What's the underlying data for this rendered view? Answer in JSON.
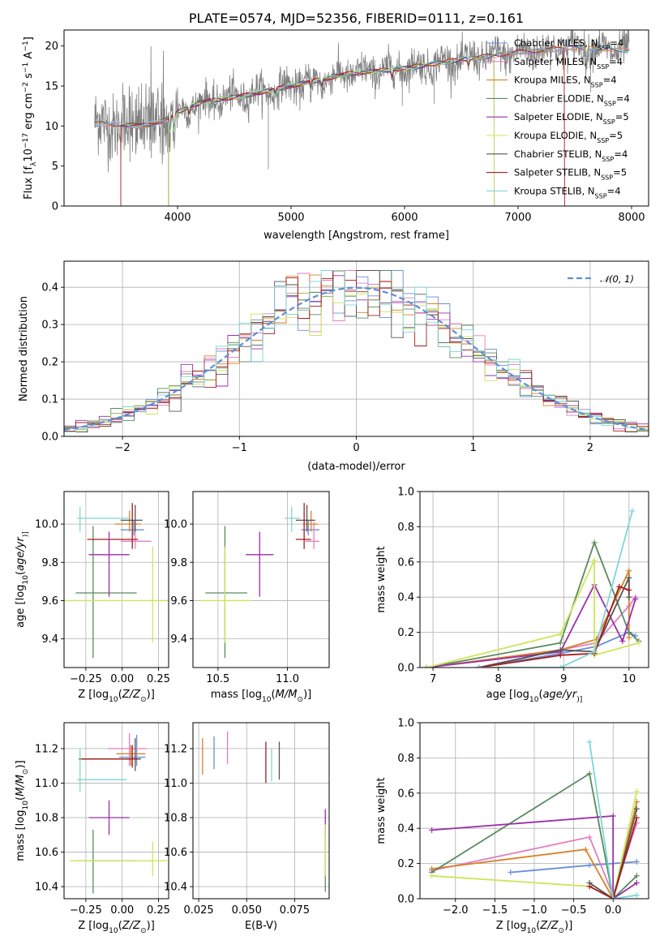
{
  "colors": {
    "Chabrier MILES": "#6a8fd8",
    "Salpeter MILES": "#e27fc0",
    "Kroupa MILES": "#d9802a",
    "Chabrier ELODIE": "#5b8a5e",
    "Salpeter ELODIE": "#9b2ea8",
    "Kroupa ELODIE": "#cde65a",
    "Chabrier STELIB": "#555555",
    "Salpeter STELIB": "#a51c1c",
    "Kroupa STELIB": "#7fd6d6"
  },
  "legend_models": [
    {
      "key": "Chabrier MILES",
      "pre": "Chabrier MILES, N",
      "sub": "SSP",
      "post": "=4"
    },
    {
      "key": "Salpeter MILES",
      "pre": "Salpeter MILES, N",
      "sub": "SSP",
      "post": "=4"
    },
    {
      "key": "Kroupa MILES",
      "pre": "Kroupa MILES, N",
      "sub": "SSP",
      "post": "=4"
    },
    {
      "key": "Chabrier ELODIE",
      "pre": "Chabrier ELODIE, N",
      "sub": "SSP",
      "post": "=4"
    },
    {
      "key": "Salpeter ELODIE",
      "pre": "Salpeter ELODIE, N",
      "sub": "SSP",
      "post": "=5"
    },
    {
      "key": "Kroupa ELODIE",
      "pre": "Kroupa ELODIE, N",
      "sub": "SSP",
      "post": "=5"
    },
    {
      "key": "Chabrier STELIB",
      "pre": "Chabrier STELIB, N",
      "sub": "SSP",
      "post": "=4"
    },
    {
      "key": "Salpeter STELIB",
      "pre": "Salpeter STELIB, N",
      "sub": "SSP",
      "post": "=5"
    },
    {
      "key": "Kroupa STELIB",
      "pre": "Kroupa STELIB, N",
      "sub": "SSP",
      "post": "=4"
    }
  ],
  "chart_data": [
    {
      "id": "spectrum",
      "type": "line",
      "title": "PLATE=0574, MJD=52356, FIBERID=0111, z=0.161",
      "xlabel": "wavelength [Angstrom, rest frame]",
      "ylabel_parts": [
        "Flux [f",
        "λ",
        "10",
        "−17",
        " erg cm",
        "−2",
        " s",
        "−1",
        " A",
        "−1",
        "]"
      ],
      "xlim": [
        3000,
        8150
      ],
      "ylim": [
        0,
        22
      ],
      "xticks": [
        4000,
        5000,
        6000,
        7000,
        8000
      ],
      "yticks": [
        0,
        5,
        10,
        15,
        20
      ],
      "grid": false,
      "legend": "right",
      "data_range_angstrom": [
        3270,
        7980
      ],
      "continuum_anchors": [
        [
          3270,
          10.3
        ],
        [
          3500,
          10.2
        ],
        [
          3700,
          10.0
        ],
        [
          3900,
          10.8
        ],
        [
          4100,
          12.5
        ],
        [
          4300,
          13.2
        ],
        [
          4600,
          13.8
        ],
        [
          5000,
          15.0
        ],
        [
          5500,
          16.5
        ],
        [
          6000,
          17.2
        ],
        [
          6500,
          18.3
        ],
        [
          7000,
          19.2
        ],
        [
          7500,
          19.8
        ],
        [
          7980,
          19.5
        ]
      ],
      "absorption_features": [
        [
          3934,
          9.0
        ],
        [
          3969,
          9.2
        ],
        [
          4102,
          11.5
        ],
        [
          4304,
          12.3
        ],
        [
          4861,
          13.8
        ],
        [
          5175,
          14.4
        ],
        [
          5270,
          15.0
        ],
        [
          5890,
          16.1
        ],
        [
          6563,
          17.6
        ],
        [
          7605,
          18.7
        ]
      ]
    },
    {
      "id": "residuals",
      "type": "histogram",
      "xlabel": "(data-model)/error",
      "ylabel": "Normed distribution",
      "xlim": [
        -2.5,
        2.5
      ],
      "ylim": [
        0,
        0.47
      ],
      "xticks": [
        -2,
        -1,
        0,
        1,
        2
      ],
      "yticks": [
        0.0,
        0.1,
        0.2,
        0.3,
        0.4
      ],
      "grid": true,
      "legend": "upper right",
      "reference_label": "𝒩(0, 1)",
      "bin_width": 0.1
    },
    {
      "id": "age_vs_Z",
      "type": "errorbar",
      "xlabel_parts": [
        "Z [log",
        "10",
        "(",
        "Z/Z",
        "⊙",
        ")]"
      ],
      "ylabel_parts": [
        "age  [log",
        "10",
        "(",
        "age/yr",
        ")]"
      ],
      "xlim": [
        -0.4,
        0.32
      ],
      "ylim": [
        9.25,
        10.17
      ],
      "xticks": [
        -0.25,
        0.0,
        0.25
      ],
      "yticks": [
        9.4,
        9.6,
        9.8,
        10.0
      ],
      "grid": true,
      "points": [
        {
          "model": "Chabrier MILES",
          "x": 0.08,
          "xerr": [
            0.09,
            0.07
          ],
          "y": 9.97,
          "yerr": [
            0.03,
            0.05
          ]
        },
        {
          "model": "Salpeter MILES",
          "x": 0.09,
          "xerr": [
            0.1,
            0.11
          ],
          "y": 9.91,
          "yerr": [
            0.04,
            0.1
          ]
        },
        {
          "model": "Kroupa MILES",
          "x": 0.05,
          "xerr": [
            0.1,
            0.08
          ],
          "y": 10.0,
          "yerr": [
            0.04,
            0.07
          ]
        },
        {
          "model": "Chabrier ELODIE",
          "x": -0.2,
          "xerr": [
            0.12,
            0.3
          ],
          "y": 9.64,
          "yerr": [
            0.34,
            0.35
          ]
        },
        {
          "model": "Salpeter ELODIE",
          "x": -0.09,
          "xerr": [
            0.14,
            0.14
          ],
          "y": 9.84,
          "yerr": [
            0.22,
            0.12
          ]
        },
        {
          "model": "Kroupa ELODIE",
          "x": 0.21,
          "xerr": [
            0.6,
            0.1
          ],
          "y": 9.6,
          "yerr": [
            0.22,
            0.28
          ]
        },
        {
          "model": "Chabrier STELIB",
          "x": 0.09,
          "xerr": [
            0.1,
            0.05
          ],
          "y": 10.02,
          "yerr": [
            0.06,
            0.08
          ]
        },
        {
          "model": "Salpeter STELIB",
          "x": 0.07,
          "xerr": [
            0.31,
            0.04
          ],
          "y": 9.92,
          "yerr": [
            0.05,
            0.19
          ]
        },
        {
          "model": "Kroupa STELIB",
          "x": -0.29,
          "xerr": [
            0.02,
            0.35
          ],
          "y": 10.03,
          "yerr": [
            0.07,
            0.06
          ]
        }
      ]
    },
    {
      "id": "age_vs_mass",
      "type": "errorbar",
      "xlabel_parts": [
        "mass [log",
        "10",
        "(",
        "M/M",
        "⊙",
        ")]"
      ],
      "xlim": [
        10.32,
        11.3
      ],
      "ylim": [
        9.25,
        10.17
      ],
      "xticks": [
        10.5,
        11.0
      ],
      "yticks": [
        9.4,
        9.6,
        9.8,
        10.0
      ],
      "grid": true,
      "points": [
        {
          "model": "Chabrier MILES",
          "x": 11.15,
          "xerr": [
            0.05,
            0.08
          ],
          "y": 9.97,
          "yerr": [
            0.03,
            0.05
          ]
        },
        {
          "model": "Salpeter MILES",
          "x": 11.19,
          "xerr": [
            0.06,
            0.04
          ],
          "y": 9.91,
          "yerr": [
            0.04,
            0.1
          ]
        },
        {
          "model": "Kroupa MILES",
          "x": 11.17,
          "xerr": [
            0.06,
            0.05
          ],
          "y": 10.0,
          "yerr": [
            0.04,
            0.07
          ]
        },
        {
          "model": "Chabrier ELODIE",
          "x": 10.55,
          "xerr": [
            0.14,
            0.16
          ],
          "y": 9.64,
          "yerr": [
            0.34,
            0.35
          ]
        },
        {
          "model": "Salpeter ELODIE",
          "x": 10.8,
          "xerr": [
            0.1,
            0.1
          ],
          "y": 9.84,
          "yerr": [
            0.22,
            0.12
          ]
        },
        {
          "model": "Kroupa ELODIE",
          "x": 10.55,
          "xerr": [
            0.18,
            0.19
          ],
          "y": 9.6,
          "yerr": [
            0.22,
            0.28
          ]
        },
        {
          "model": "Chabrier STELIB",
          "x": 11.14,
          "xerr": [
            0.08,
            0.06
          ],
          "y": 10.02,
          "yerr": [
            0.06,
            0.08
          ]
        },
        {
          "model": "Salpeter STELIB",
          "x": 11.12,
          "xerr": [
            0.06,
            0.05
          ],
          "y": 9.92,
          "yerr": [
            0.05,
            0.19
          ]
        },
        {
          "model": "Kroupa STELIB",
          "x": 11.03,
          "xerr": [
            0.05,
            0.06
          ],
          "y": 10.03,
          "yerr": [
            0.07,
            0.06
          ]
        }
      ]
    },
    {
      "id": "weight_vs_age",
      "type": "line",
      "xlabel_parts": [
        "age  [log",
        "10",
        "(",
        "age/yr",
        ")]"
      ],
      "ylabel": "mass weight",
      "xlim": [
        6.8,
        10.3
      ],
      "ylim": [
        0.0,
        1.0
      ],
      "xticks": [
        7,
        8,
        9,
        10
      ],
      "yticks": [
        0.0,
        0.2,
        0.4,
        0.6,
        0.8,
        1.0
      ],
      "grid": true,
      "series": [
        {
          "model": "Chabrier MILES",
          "x": [
            7.7,
            8.95,
            9.5,
            10.0,
            10.1
          ],
          "y": [
            0.0,
            0.08,
            0.12,
            0.2,
            0.18
          ]
        },
        {
          "model": "Salpeter MILES",
          "x": [
            7.7,
            8.95,
            9.5,
            10.0,
            10.1
          ],
          "y": [
            0.0,
            0.1,
            0.14,
            0.35,
            0.4
          ]
        },
        {
          "model": "Kroupa MILES",
          "x": [
            6.9,
            8.95,
            9.5,
            10.0,
            10.0
          ],
          "y": [
            0.0,
            0.1,
            0.16,
            0.55,
            0.17
          ]
        },
        {
          "model": "Chabrier ELODIE",
          "x": [
            6.9,
            8.95,
            9.47,
            10.0,
            10.15
          ],
          "y": [
            0.0,
            0.14,
            0.71,
            0.2,
            0.15
          ]
        },
        {
          "model": "Salpeter ELODIE",
          "x": [
            6.9,
            8.95,
            9.47,
            9.9,
            10.1
          ],
          "y": [
            0.0,
            0.09,
            0.47,
            0.15,
            0.39
          ]
        },
        {
          "model": "Kroupa ELODIE",
          "x": [
            6.9,
            8.95,
            9.47,
            9.47,
            10.15
          ],
          "y": [
            0.0,
            0.19,
            0.61,
            0.07,
            0.14
          ]
        },
        {
          "model": "Chabrier STELIB",
          "x": [
            7.7,
            8.95,
            9.47,
            10.0,
            10.0
          ],
          "y": [
            0.0,
            0.1,
            0.09,
            0.51,
            0.4
          ]
        },
        {
          "model": "Salpeter STELIB",
          "x": [
            7.7,
            8.95,
            9.47,
            9.85,
            10.0
          ],
          "y": [
            0.0,
            0.07,
            0.08,
            0.46,
            0.44
          ]
        },
        {
          "model": "Kroupa STELIB",
          "x": [
            7.7,
            8.95,
            9.47,
            10.05
          ],
          "y": [
            0.0,
            0.0,
            0.09,
            0.89
          ]
        }
      ]
    },
    {
      "id": "mass_vs_Z",
      "type": "errorbar",
      "xlabel_parts": [
        "Z [log",
        "10",
        "(",
        "Z/Z",
        "⊙",
        ")]"
      ],
      "ylabel_parts": [
        "mass [log",
        "10",
        "(",
        "M/M",
        "⊙",
        ")]"
      ],
      "xlim": [
        -0.4,
        0.32
      ],
      "ylim": [
        10.33,
        11.35
      ],
      "xticks": [
        -0.25,
        0.0,
        0.25
      ],
      "yticks": [
        10.4,
        10.6,
        10.8,
        11.0,
        11.2
      ],
      "grid": true,
      "points": [
        {
          "model": "Chabrier MILES",
          "x": 0.1,
          "xerr": [
            0.12,
            0.06
          ],
          "y": 11.15,
          "yerr": [
            0.05,
            0.13
          ]
        },
        {
          "model": "Salpeter MILES",
          "x": 0.05,
          "xerr": [
            0.15,
            0.12
          ],
          "y": 11.2,
          "yerr": [
            0.1,
            0.09
          ]
        },
        {
          "model": "Kroupa MILES",
          "x": 0.06,
          "xerr": [
            0.1,
            0.1
          ],
          "y": 11.17,
          "yerr": [
            0.07,
            0.05
          ]
        },
        {
          "model": "Chabrier ELODIE",
          "x": -0.2,
          "xerr": [
            0.12,
            0.3
          ],
          "y": 10.55,
          "yerr": [
            0.19,
            0.18
          ]
        },
        {
          "model": "Salpeter ELODIE",
          "x": -0.09,
          "xerr": [
            0.14,
            0.14
          ],
          "y": 10.8,
          "yerr": [
            0.1,
            0.1
          ]
        },
        {
          "model": "Kroupa ELODIE",
          "x": 0.21,
          "xerr": [
            0.57,
            0.1
          ],
          "y": 10.55,
          "yerr": [
            0.09,
            0.11
          ]
        },
        {
          "model": "Chabrier STELIB",
          "x": 0.09,
          "xerr": [
            0.39,
            0.04
          ],
          "y": 11.14,
          "yerr": [
            0.07,
            0.12
          ]
        },
        {
          "model": "Salpeter STELIB",
          "x": 0.07,
          "xerr": [
            0.35,
            0.04
          ],
          "y": 11.14,
          "yerr": [
            0.05,
            0.08
          ]
        },
        {
          "model": "Kroupa STELIB",
          "x": -0.29,
          "xerr": [
            0.02,
            0.32
          ],
          "y": 11.02,
          "yerr": [
            0.07,
            0.18
          ]
        }
      ]
    },
    {
      "id": "mass_vs_ebv",
      "type": "errorbar",
      "xlabel": "E(B-V)",
      "xlim": [
        0.022,
        0.093
      ],
      "ylim": [
        10.33,
        11.35
      ],
      "xticks": [
        0.025,
        0.05,
        0.075
      ],
      "yticks": [
        10.4,
        10.6,
        10.8,
        11.0,
        11.2
      ],
      "grid": true,
      "points": [
        {
          "model": "Chabrier MILES",
          "x": 0.033,
          "y": 11.17,
          "yerr": [
            0.09,
            0.1
          ]
        },
        {
          "model": "Salpeter MILES",
          "x": 0.04,
          "y": 11.2,
          "yerr": [
            0.09,
            0.1
          ]
        },
        {
          "model": "Kroupa MILES",
          "x": 0.027,
          "y": 11.17,
          "yerr": [
            0.12,
            0.09
          ]
        },
        {
          "model": "Chabrier ELODIE",
          "x": 0.091,
          "y": 10.55,
          "yerr": [
            0.18,
            0.2
          ]
        },
        {
          "model": "Salpeter ELODIE",
          "x": 0.091,
          "y": 10.79,
          "yerr": [
            0.1,
            0.06
          ]
        },
        {
          "model": "Kroupa ELODIE",
          "x": 0.091,
          "y": 10.55,
          "yerr": [
            0.09,
            0.21
          ]
        },
        {
          "model": "Chabrier STELIB",
          "x": 0.067,
          "y": 11.14,
          "yerr": [
            0.12,
            0.1
          ]
        },
        {
          "model": "Salpeter STELIB",
          "x": 0.06,
          "y": 11.12,
          "yerr": [
            0.12,
            0.12
          ]
        },
        {
          "model": "Kroupa STELIB",
          "x": 0.063,
          "y": 11.08,
          "yerr": [
            0.07,
            0.12
          ]
        }
      ]
    },
    {
      "id": "weight_vs_Z",
      "type": "line",
      "xlabel_parts": [
        "Z [log",
        "10",
        "(",
        "Z/Z",
        "⊙",
        ")]"
      ],
      "ylabel": "mass weight",
      "xlim": [
        -2.45,
        0.45
      ],
      "ylim": [
        0.0,
        1.0
      ],
      "xticks": [
        -2.0,
        -1.5,
        -1.0,
        -0.5,
        0.0
      ],
      "yticks": [
        0.0,
        0.2,
        0.4,
        0.6,
        0.8,
        1.0
      ],
      "grid": true,
      "series": [
        {
          "model": "Chabrier MILES",
          "x": [
            -1.3,
            -0.3,
            0.0,
            0.3
          ],
          "y": [
            0.15,
            0.19,
            0.2,
            0.21
          ]
        },
        {
          "model": "Salpeter MILES",
          "x": [
            -2.3,
            -0.3,
            0.0,
            0.3
          ],
          "y": [
            0.16,
            0.35,
            0.02,
            0.43
          ]
        },
        {
          "model": "Kroupa MILES",
          "x": [
            -2.3,
            -0.35,
            0.0,
            0.3
          ],
          "y": [
            0.17,
            0.28,
            0.0,
            0.55
          ]
        },
        {
          "model": "Chabrier ELODIE",
          "x": [
            -2.3,
            -0.3,
            0.0,
            0.3
          ],
          "y": [
            0.15,
            0.71,
            0.0,
            0.13
          ]
        },
        {
          "model": "Salpeter ELODIE",
          "x": [
            -2.3,
            0.0,
            0.0,
            0.3
          ],
          "y": [
            0.39,
            0.47,
            0.0,
            0.09
          ]
        },
        {
          "model": "Kroupa ELODIE",
          "x": [
            -2.3,
            -0.3,
            0.0,
            0.3
          ],
          "y": [
            0.13,
            0.07,
            0.0,
            0.61
          ]
        },
        {
          "model": "Chabrier STELIB",
          "x": [
            -0.3,
            0.0,
            0.3
          ],
          "y": [
            0.09,
            0.0,
            0.51
          ]
        },
        {
          "model": "Salpeter STELIB",
          "x": [
            -0.3,
            0.0,
            0.3
          ],
          "y": [
            0.07,
            0.0,
            0.46
          ]
        },
        {
          "model": "Kroupa STELIB",
          "x": [
            -0.3,
            0.0,
            0.3
          ],
          "y": [
            0.89,
            0.0,
            0.02
          ]
        }
      ]
    }
  ]
}
